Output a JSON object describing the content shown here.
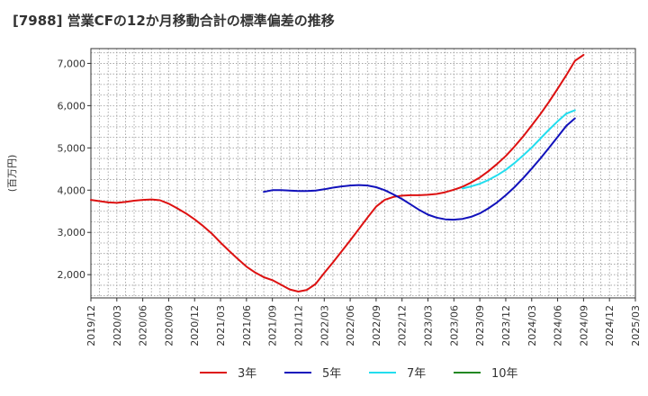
{
  "title": "[7988]  営業CFの12か月移動合計の標準偏差の推移",
  "chart_data": {
    "type": "line",
    "title": "[7988]  営業CFの12か月移動合計の標準偏差の推移",
    "ylabel": "(百万円)",
    "xlabel": "",
    "ylim": [
      1450,
      7350
    ],
    "yticks": [
      2000,
      3000,
      4000,
      5000,
      6000,
      7000
    ],
    "ytick_labels": [
      "2,000",
      "3,000",
      "4,000",
      "5,000",
      "6,000",
      "7,000"
    ],
    "x_start": "2019/12",
    "x_end": "2025/03",
    "xtick_labels": [
      "2019/12",
      "2020/03",
      "2020/06",
      "2020/09",
      "2020/12",
      "2021/03",
      "2021/06",
      "2021/09",
      "2021/12",
      "2022/03",
      "2022/06",
      "2022/09",
      "2022/12",
      "2023/03",
      "2023/06",
      "2023/09",
      "2023/12",
      "2024/03",
      "2024/06",
      "2024/09",
      "2024/12",
      "2025/03"
    ],
    "grid": true,
    "legend_position": "bottom",
    "series": [
      {
        "name": "3年",
        "color": "#dd1111",
        "points": [
          [
            "2019/12",
            3770
          ],
          [
            "2020/01",
            3740
          ],
          [
            "2020/02",
            3710
          ],
          [
            "2020/03",
            3700
          ],
          [
            "2020/04",
            3720
          ],
          [
            "2020/05",
            3750
          ],
          [
            "2020/06",
            3770
          ],
          [
            "2020/07",
            3780
          ],
          [
            "2020/08",
            3760
          ],
          [
            "2020/09",
            3680
          ],
          [
            "2020/10",
            3570
          ],
          [
            "2020/11",
            3450
          ],
          [
            "2020/12",
            3310
          ],
          [
            "2021/01",
            3150
          ],
          [
            "2021/02",
            2970
          ],
          [
            "2021/03",
            2760
          ],
          [
            "2021/04",
            2560
          ],
          [
            "2021/05",
            2370
          ],
          [
            "2021/06",
            2190
          ],
          [
            "2021/07",
            2050
          ],
          [
            "2021/08",
            1940
          ],
          [
            "2021/09",
            1870
          ],
          [
            "2021/10",
            1760
          ],
          [
            "2021/11",
            1650
          ],
          [
            "2021/12",
            1600
          ],
          [
            "2022/01",
            1640
          ],
          [
            "2022/02",
            1780
          ],
          [
            "2022/03",
            2040
          ],
          [
            "2022/04",
            2290
          ],
          [
            "2022/05",
            2550
          ],
          [
            "2022/06",
            2810
          ],
          [
            "2022/07",
            3080
          ],
          [
            "2022/08",
            3350
          ],
          [
            "2022/09",
            3610
          ],
          [
            "2022/10",
            3770
          ],
          [
            "2022/11",
            3840
          ],
          [
            "2022/12",
            3870
          ],
          [
            "2023/01",
            3880
          ],
          [
            "2023/02",
            3880
          ],
          [
            "2023/03",
            3890
          ],
          [
            "2023/04",
            3910
          ],
          [
            "2023/05",
            3950
          ],
          [
            "2023/06",
            4010
          ],
          [
            "2023/07",
            4080
          ],
          [
            "2023/08",
            4180
          ],
          [
            "2023/09",
            4300
          ],
          [
            "2023/10",
            4450
          ],
          [
            "2023/11",
            4620
          ],
          [
            "2023/12",
            4810
          ],
          [
            "2024/01",
            5030
          ],
          [
            "2024/02",
            5270
          ],
          [
            "2024/03",
            5530
          ],
          [
            "2024/04",
            5800
          ],
          [
            "2024/05",
            6090
          ],
          [
            "2024/06",
            6400
          ],
          [
            "2024/07",
            6720
          ],
          [
            "2024/08",
            7060
          ],
          [
            "2024/09",
            7200
          ]
        ]
      },
      {
        "name": "5年",
        "color": "#1111bb",
        "points": [
          [
            "2021/08",
            3960
          ],
          [
            "2021/09",
            4000
          ],
          [
            "2021/10",
            4000
          ],
          [
            "2021/11",
            3990
          ],
          [
            "2021/12",
            3980
          ],
          [
            "2022/01",
            3980
          ],
          [
            "2022/02",
            3990
          ],
          [
            "2022/03",
            4020
          ],
          [
            "2022/04",
            4060
          ],
          [
            "2022/05",
            4090
          ],
          [
            "2022/06",
            4110
          ],
          [
            "2022/07",
            4120
          ],
          [
            "2022/08",
            4110
          ],
          [
            "2022/09",
            4070
          ],
          [
            "2022/10",
            4000
          ],
          [
            "2022/11",
            3900
          ],
          [
            "2022/12",
            3790
          ],
          [
            "2023/01",
            3660
          ],
          [
            "2023/02",
            3530
          ],
          [
            "2023/03",
            3420
          ],
          [
            "2023/04",
            3350
          ],
          [
            "2023/05",
            3310
          ],
          [
            "2023/06",
            3300
          ],
          [
            "2023/07",
            3320
          ],
          [
            "2023/08",
            3370
          ],
          [
            "2023/09",
            3450
          ],
          [
            "2023/10",
            3570
          ],
          [
            "2023/11",
            3710
          ],
          [
            "2023/12",
            3880
          ],
          [
            "2024/01",
            4070
          ],
          [
            "2024/02",
            4280
          ],
          [
            "2024/03",
            4510
          ],
          [
            "2024/04",
            4750
          ],
          [
            "2024/05",
            5000
          ],
          [
            "2024/06",
            5260
          ],
          [
            "2024/07",
            5520
          ],
          [
            "2024/08",
            5700
          ]
        ]
      },
      {
        "name": "7年",
        "color": "#22ddee",
        "points": [
          [
            "2023/07",
            4040
          ],
          [
            "2023/08",
            4090
          ],
          [
            "2023/09",
            4150
          ],
          [
            "2023/10",
            4240
          ],
          [
            "2023/11",
            4350
          ],
          [
            "2023/12",
            4480
          ],
          [
            "2024/01",
            4640
          ],
          [
            "2024/02",
            4820
          ],
          [
            "2024/03",
            5010
          ],
          [
            "2024/04",
            5220
          ],
          [
            "2024/05",
            5430
          ],
          [
            "2024/06",
            5630
          ],
          [
            "2024/07",
            5810
          ],
          [
            "2024/08",
            5890
          ]
        ]
      },
      {
        "name": "10年",
        "color": "#228822",
        "points": []
      }
    ]
  }
}
